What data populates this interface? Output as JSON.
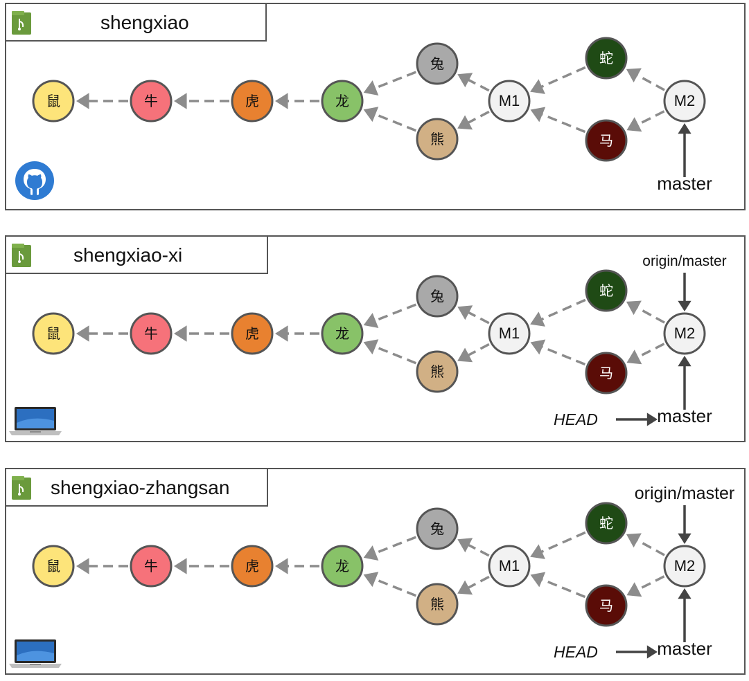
{
  "colors": {
    "border": "#555555",
    "arrow_dashed": "#8c8c8c",
    "arrow_solid": "#444444",
    "repo_icon": "#6a9a3c",
    "github_blue": "#2f7bd2",
    "node_fills": {
      "鼠": "#fde47a",
      "牛": "#f6727a",
      "虎": "#e88130",
      "龙": "#88c268",
      "兔": "#a9a9a9",
      "熊": "#d1b085",
      "M1": "#f2f2f2",
      "蛇": "#1f4a15",
      "马": "#5a0c07",
      "M2": "#f2f2f2"
    }
  },
  "panels": [
    {
      "title": "shengxiao",
      "corner_icon": "github-icon",
      "nodes": [
        "鼠",
        "牛",
        "虎",
        "龙",
        "兔",
        "熊",
        "M1",
        "蛇",
        "马",
        "M2"
      ],
      "refs": {
        "master": "master"
      }
    },
    {
      "title": "shengxiao-xi",
      "corner_icon": "laptop-icon",
      "nodes": [
        "鼠",
        "牛",
        "虎",
        "龙",
        "兔",
        "熊",
        "M1",
        "蛇",
        "马",
        "M2"
      ],
      "refs": {
        "origin_master": "origin/master",
        "head": "HEAD",
        "master": "master"
      }
    },
    {
      "title": "shengxiao-zhangsan",
      "corner_icon": "laptop-icon",
      "nodes": [
        "鼠",
        "牛",
        "虎",
        "龙",
        "兔",
        "熊",
        "M1",
        "蛇",
        "马",
        "M2"
      ],
      "refs": {
        "origin_master": "origin/master",
        "head": "HEAD",
        "master": "master"
      }
    }
  ]
}
